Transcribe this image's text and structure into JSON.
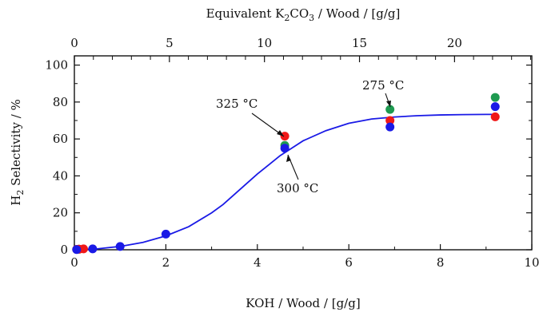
{
  "chart_data": {
    "type": "scatter",
    "xlabel_main": "KOH / Wood / [g/g]",
    "xlabel_sub": "",
    "xlabel_top_main": "Equivalent K",
    "xlabel_top_sub1": "2",
    "xlabel_top_mid": "CO",
    "xlabel_top_sub2": "3",
    "xlabel_top_end": " / Wood / [g/g]",
    "ylabel_main": "H",
    "ylabel_sub": "2",
    "ylabel_end": " Selectivity / %",
    "xlim": [
      0,
      10
    ],
    "ylim": [
      0,
      105
    ],
    "x_ticks": [
      0,
      2,
      4,
      6,
      8,
      10
    ],
    "x_tick_labels": [
      "0",
      "2",
      "4",
      "6",
      "8",
      "10"
    ],
    "y_ticks": [
      0,
      20,
      40,
      60,
      80,
      100
    ],
    "y_tick_labels": [
      "0",
      "20",
      "40",
      "60",
      "80",
      "100"
    ],
    "top_axis": {
      "factor": 2.4065,
      "ticks": [
        0,
        5,
        10,
        15,
        20
      ],
      "tick_labels": [
        "0",
        "5",
        "10",
        "15",
        "20"
      ],
      "minor_step": 1
    },
    "series": [
      {
        "name": "275 °C",
        "color": "#1e9a50",
        "x": [
          0.05,
          0.1,
          4.6,
          6.9,
          9.2
        ],
        "y": [
          0.2,
          0.3,
          56.5,
          76,
          82.5
        ]
      },
      {
        "name": "325 °C",
        "color": "#f01818",
        "x": [
          0.05,
          0.1,
          0.2,
          4.6,
          6.9,
          9.2
        ],
        "y": [
          0.2,
          0.3,
          0.5,
          61.5,
          70,
          72
        ]
      },
      {
        "name": "300 °C",
        "color": "#1a1ae6",
        "x": [
          0.05,
          0.4,
          1.0,
          2.0,
          4.6,
          6.9,
          9.2
        ],
        "y": [
          0.1,
          0.5,
          1.8,
          8.5,
          55,
          66.5,
          77.5
        ]
      }
    ],
    "fit_curve": {
      "color": "#1a1ae6",
      "x": [
        0,
        0.5,
        1,
        1.5,
        2,
        2.5,
        3,
        3.25,
        3.5,
        3.75,
        4,
        4.25,
        4.5,
        4.75,
        5,
        5.5,
        6,
        6.5,
        7,
        7.5,
        8,
        8.5,
        9,
        9.2
      ],
      "y": [
        0,
        0.5,
        1.8,
        4.0,
        7.5,
        12.5,
        20,
        24.5,
        30,
        35.5,
        41,
        46,
        51,
        55,
        59,
        64.5,
        68.5,
        70.8,
        71.9,
        72.6,
        73.0,
        73.2,
        73.3,
        73.3
      ]
    },
    "annotations": [
      {
        "text": "325 °C",
        "at": [
          4.6,
          61.5
        ]
      },
      {
        "text": "275 °C",
        "at": [
          6.9,
          76
        ]
      },
      {
        "text": "300 °C",
        "at": [
          4.6,
          55
        ]
      }
    ]
  }
}
